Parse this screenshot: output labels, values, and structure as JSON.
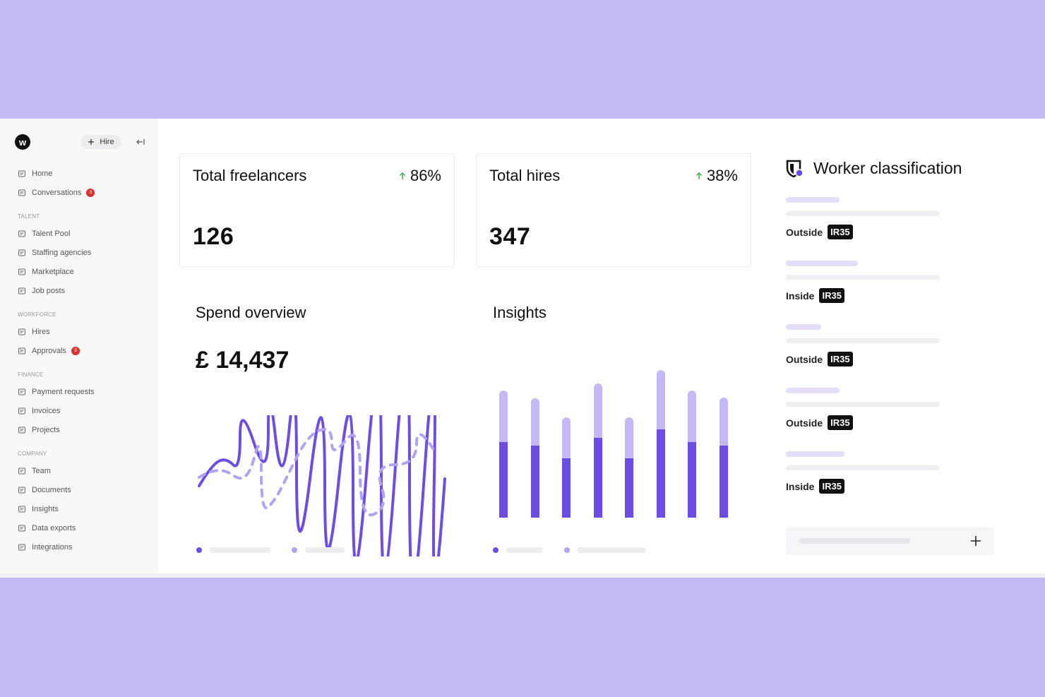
{
  "sidebar": {
    "logo": "w",
    "hire_button": "Hire",
    "top_items": [
      {
        "label": "Home"
      },
      {
        "label": "Conversations",
        "badge": 3
      }
    ],
    "sections": [
      {
        "heading": "TALENT",
        "items": [
          {
            "label": "Talent Pool"
          },
          {
            "label": "Staffing agencies"
          },
          {
            "label": "Marketplace"
          },
          {
            "label": "Job posts"
          }
        ]
      },
      {
        "heading": "WORKFORCE",
        "items": [
          {
            "label": "Hires"
          },
          {
            "label": "Approvals",
            "badge": 3
          }
        ]
      },
      {
        "heading": "FINANCE",
        "items": [
          {
            "label": "Payment requests"
          },
          {
            "label": "Invoices"
          },
          {
            "label": "Projects"
          }
        ]
      },
      {
        "heading": "COMPANY",
        "items": [
          {
            "label": "Team"
          },
          {
            "label": "Documents"
          },
          {
            "label": "Insights"
          },
          {
            "label": "Data exports"
          },
          {
            "label": "Integrations"
          }
        ]
      }
    ]
  },
  "cards": [
    {
      "title": "Total freelancers",
      "change": "86%",
      "value": 126
    },
    {
      "title": "Total hires",
      "change": "38%",
      "value": 347
    }
  ],
  "spend": {
    "title": "Spend overview",
    "amount": "£ 14,437"
  },
  "insights": {
    "title": "Insights"
  },
  "worker_classification": {
    "title": "Worker classification",
    "items": [
      {
        "status": "Outside",
        "tag": "IR35"
      },
      {
        "status": "Inside",
        "tag": "IR35"
      },
      {
        "status": "Outside",
        "tag": "IR35"
      },
      {
        "status": "Outside",
        "tag": "IR35"
      },
      {
        "status": "Inside",
        "tag": "IR35"
      }
    ]
  }
}
